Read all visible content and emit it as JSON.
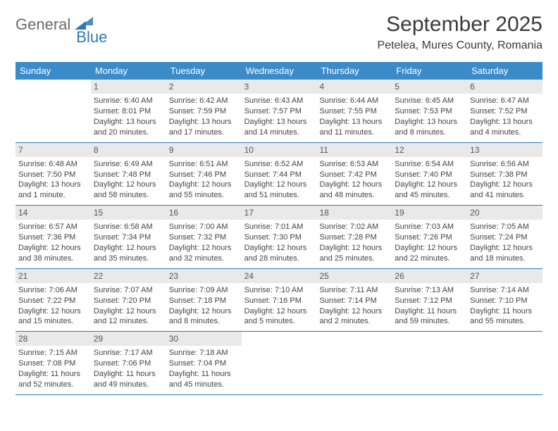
{
  "logo": {
    "text1": "General",
    "text2": "Blue"
  },
  "title": "September 2025",
  "location": "Petelea, Mures County, Romania",
  "colors": {
    "header_bg": "#3b8bc9",
    "border": "#2f78b7",
    "daynum_bg": "#e9e9e9",
    "logo_gray": "#6b6b6b",
    "logo_blue": "#2f78b7"
  },
  "weekdays": [
    "Sunday",
    "Monday",
    "Tuesday",
    "Wednesday",
    "Thursday",
    "Friday",
    "Saturday"
  ],
  "weeks": [
    [
      null,
      {
        "n": "1",
        "sr": "Sunrise: 6:40 AM",
        "ss": "Sunset: 8:01 PM",
        "d1": "Daylight: 13 hours",
        "d2": "and 20 minutes."
      },
      {
        "n": "2",
        "sr": "Sunrise: 6:42 AM",
        "ss": "Sunset: 7:59 PM",
        "d1": "Daylight: 13 hours",
        "d2": "and 17 minutes."
      },
      {
        "n": "3",
        "sr": "Sunrise: 6:43 AM",
        "ss": "Sunset: 7:57 PM",
        "d1": "Daylight: 13 hours",
        "d2": "and 14 minutes."
      },
      {
        "n": "4",
        "sr": "Sunrise: 6:44 AM",
        "ss": "Sunset: 7:55 PM",
        "d1": "Daylight: 13 hours",
        "d2": "and 11 minutes."
      },
      {
        "n": "5",
        "sr": "Sunrise: 6:45 AM",
        "ss": "Sunset: 7:53 PM",
        "d1": "Daylight: 13 hours",
        "d2": "and 8 minutes."
      },
      {
        "n": "6",
        "sr": "Sunrise: 6:47 AM",
        "ss": "Sunset: 7:52 PM",
        "d1": "Daylight: 13 hours",
        "d2": "and 4 minutes."
      }
    ],
    [
      {
        "n": "7",
        "sr": "Sunrise: 6:48 AM",
        "ss": "Sunset: 7:50 PM",
        "d1": "Daylight: 13 hours",
        "d2": "and 1 minute."
      },
      {
        "n": "8",
        "sr": "Sunrise: 6:49 AM",
        "ss": "Sunset: 7:48 PM",
        "d1": "Daylight: 12 hours",
        "d2": "and 58 minutes."
      },
      {
        "n": "9",
        "sr": "Sunrise: 6:51 AM",
        "ss": "Sunset: 7:46 PM",
        "d1": "Daylight: 12 hours",
        "d2": "and 55 minutes."
      },
      {
        "n": "10",
        "sr": "Sunrise: 6:52 AM",
        "ss": "Sunset: 7:44 PM",
        "d1": "Daylight: 12 hours",
        "d2": "and 51 minutes."
      },
      {
        "n": "11",
        "sr": "Sunrise: 6:53 AM",
        "ss": "Sunset: 7:42 PM",
        "d1": "Daylight: 12 hours",
        "d2": "and 48 minutes."
      },
      {
        "n": "12",
        "sr": "Sunrise: 6:54 AM",
        "ss": "Sunset: 7:40 PM",
        "d1": "Daylight: 12 hours",
        "d2": "and 45 minutes."
      },
      {
        "n": "13",
        "sr": "Sunrise: 6:56 AM",
        "ss": "Sunset: 7:38 PM",
        "d1": "Daylight: 12 hours",
        "d2": "and 41 minutes."
      }
    ],
    [
      {
        "n": "14",
        "sr": "Sunrise: 6:57 AM",
        "ss": "Sunset: 7:36 PM",
        "d1": "Daylight: 12 hours",
        "d2": "and 38 minutes."
      },
      {
        "n": "15",
        "sr": "Sunrise: 6:58 AM",
        "ss": "Sunset: 7:34 PM",
        "d1": "Daylight: 12 hours",
        "d2": "and 35 minutes."
      },
      {
        "n": "16",
        "sr": "Sunrise: 7:00 AM",
        "ss": "Sunset: 7:32 PM",
        "d1": "Daylight: 12 hours",
        "d2": "and 32 minutes."
      },
      {
        "n": "17",
        "sr": "Sunrise: 7:01 AM",
        "ss": "Sunset: 7:30 PM",
        "d1": "Daylight: 12 hours",
        "d2": "and 28 minutes."
      },
      {
        "n": "18",
        "sr": "Sunrise: 7:02 AM",
        "ss": "Sunset: 7:28 PM",
        "d1": "Daylight: 12 hours",
        "d2": "and 25 minutes."
      },
      {
        "n": "19",
        "sr": "Sunrise: 7:03 AM",
        "ss": "Sunset: 7:26 PM",
        "d1": "Daylight: 12 hours",
        "d2": "and 22 minutes."
      },
      {
        "n": "20",
        "sr": "Sunrise: 7:05 AM",
        "ss": "Sunset: 7:24 PM",
        "d1": "Daylight: 12 hours",
        "d2": "and 18 minutes."
      }
    ],
    [
      {
        "n": "21",
        "sr": "Sunrise: 7:06 AM",
        "ss": "Sunset: 7:22 PM",
        "d1": "Daylight: 12 hours",
        "d2": "and 15 minutes."
      },
      {
        "n": "22",
        "sr": "Sunrise: 7:07 AM",
        "ss": "Sunset: 7:20 PM",
        "d1": "Daylight: 12 hours",
        "d2": "and 12 minutes."
      },
      {
        "n": "23",
        "sr": "Sunrise: 7:09 AM",
        "ss": "Sunset: 7:18 PM",
        "d1": "Daylight: 12 hours",
        "d2": "and 8 minutes."
      },
      {
        "n": "24",
        "sr": "Sunrise: 7:10 AM",
        "ss": "Sunset: 7:16 PM",
        "d1": "Daylight: 12 hours",
        "d2": "and 5 minutes."
      },
      {
        "n": "25",
        "sr": "Sunrise: 7:11 AM",
        "ss": "Sunset: 7:14 PM",
        "d1": "Daylight: 12 hours",
        "d2": "and 2 minutes."
      },
      {
        "n": "26",
        "sr": "Sunrise: 7:13 AM",
        "ss": "Sunset: 7:12 PM",
        "d1": "Daylight: 11 hours",
        "d2": "and 59 minutes."
      },
      {
        "n": "27",
        "sr": "Sunrise: 7:14 AM",
        "ss": "Sunset: 7:10 PM",
        "d1": "Daylight: 11 hours",
        "d2": "and 55 minutes."
      }
    ],
    [
      {
        "n": "28",
        "sr": "Sunrise: 7:15 AM",
        "ss": "Sunset: 7:08 PM",
        "d1": "Daylight: 11 hours",
        "d2": "and 52 minutes."
      },
      {
        "n": "29",
        "sr": "Sunrise: 7:17 AM",
        "ss": "Sunset: 7:06 PM",
        "d1": "Daylight: 11 hours",
        "d2": "and 49 minutes."
      },
      {
        "n": "30",
        "sr": "Sunrise: 7:18 AM",
        "ss": "Sunset: 7:04 PM",
        "d1": "Daylight: 11 hours",
        "d2": "and 45 minutes."
      },
      null,
      null,
      null,
      null
    ]
  ]
}
